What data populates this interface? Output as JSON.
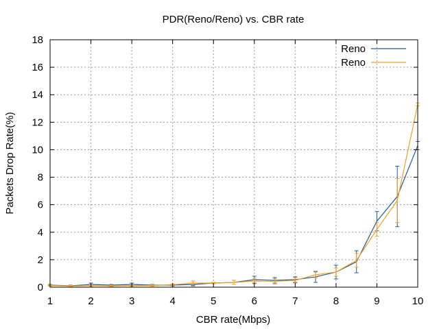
{
  "chart_data": {
    "type": "line",
    "title": "PDR(Reno/Reno) vs. CBR rate",
    "xlabel": "CBR rate(Mbps)",
    "ylabel": "Packets Drop Rate(%)",
    "xlim": [
      1,
      10
    ],
    "ylim": [
      0,
      18
    ],
    "xticks": [
      1,
      2,
      3,
      4,
      5,
      6,
      7,
      8,
      9,
      10
    ],
    "yticks": [
      0,
      2,
      4,
      6,
      8,
      10,
      12,
      14,
      16,
      18
    ],
    "grid": true,
    "legend_position": "top-right",
    "x": [
      1,
      1.5,
      2,
      2.5,
      3,
      3.5,
      4,
      4.5,
      5,
      5.5,
      6,
      6.5,
      7,
      7.5,
      8,
      8.5,
      9,
      9.5,
      10
    ],
    "series": [
      {
        "name": "Reno",
        "color": "#1f5b99",
        "values": [
          0.15,
          0.1,
          0.2,
          0.15,
          0.2,
          0.15,
          0.15,
          0.2,
          0.3,
          0.35,
          0.55,
          0.5,
          0.55,
          0.75,
          1.1,
          1.85,
          4.8,
          6.6,
          10.3
        ],
        "err": [
          0.05,
          0.05,
          0.1,
          0.05,
          0.1,
          0.05,
          0.05,
          0.1,
          0.05,
          0.15,
          0.25,
          0.2,
          0.2,
          0.4,
          0.5,
          0.8,
          0.7,
          2.2,
          0.3
        ]
      },
      {
        "name": "Reno",
        "color": "#f0a020",
        "values": [
          0.12,
          0.08,
          0.12,
          0.1,
          0.12,
          0.12,
          0.18,
          0.3,
          0.3,
          0.35,
          0.45,
          0.42,
          0.5,
          0.9,
          1.1,
          1.95,
          4.2,
          6.3,
          13.3
        ],
        "err": [
          0.05,
          0.05,
          0.05,
          0.05,
          0.05,
          0.05,
          0.05,
          0.15,
          0.05,
          0.15,
          0.2,
          0.2,
          0.2,
          0.2,
          0.3,
          0.5,
          0.5,
          1.6,
          0.1
        ]
      }
    ]
  }
}
